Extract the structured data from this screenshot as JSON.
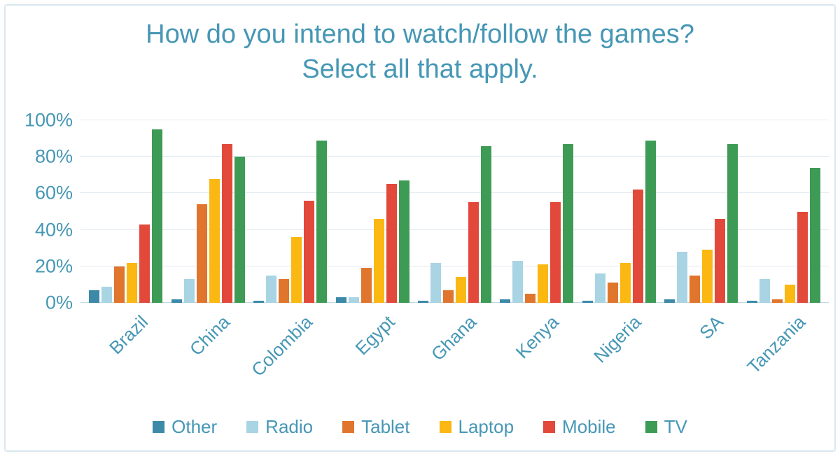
{
  "title": {
    "line1": "How do you intend to watch/follow the games?",
    "line2": "Select all that apply."
  },
  "chart_data": {
    "type": "bar",
    "title": "How do you intend to watch/follow the games? Select all that apply.",
    "xlabel": "",
    "ylabel": "",
    "categories": [
      "Brazil",
      "China",
      "Colombia",
      "Egypt",
      "Ghana",
      "Kenya",
      "Nigeria",
      "SA",
      "Tanzania"
    ],
    "series": [
      {
        "name": "Other",
        "color": "#3C89A8",
        "values": [
          7,
          2,
          1,
          3,
          1,
          2,
          1,
          2,
          1
        ]
      },
      {
        "name": "Radio",
        "color": "#A9D4E4",
        "values": [
          9,
          13,
          15,
          3,
          22,
          23,
          16,
          28,
          13
        ]
      },
      {
        "name": "Tablet",
        "color": "#E0752D",
        "values": [
          20,
          54,
          13,
          19,
          7,
          5,
          11,
          15,
          2
        ]
      },
      {
        "name": "Laptop",
        "color": "#FBB712",
        "values": [
          22,
          68,
          36,
          46,
          14,
          21,
          22,
          29,
          10
        ]
      },
      {
        "name": "Mobile",
        "color": "#E2493B",
        "values": [
          43,
          87,
          56,
          65,
          55,
          55,
          62,
          46,
          50
        ]
      },
      {
        "name": "TV",
        "color": "#3E9B55",
        "values": [
          95,
          80,
          89,
          67,
          86,
          87,
          89,
          87,
          74
        ]
      }
    ],
    "y_axis": {
      "min": 0,
      "max": 100,
      "ticks": [
        "0%",
        "20%",
        "40%",
        "60%",
        "80%",
        "100%"
      ]
    },
    "grid": true,
    "legend_position": "bottom",
    "style": {
      "text_color": "#4697B5",
      "gridline_color": "#E2EBF2",
      "axis_line_color": "#C6D7E2",
      "frame_border_color": "#D9E7EE"
    }
  }
}
